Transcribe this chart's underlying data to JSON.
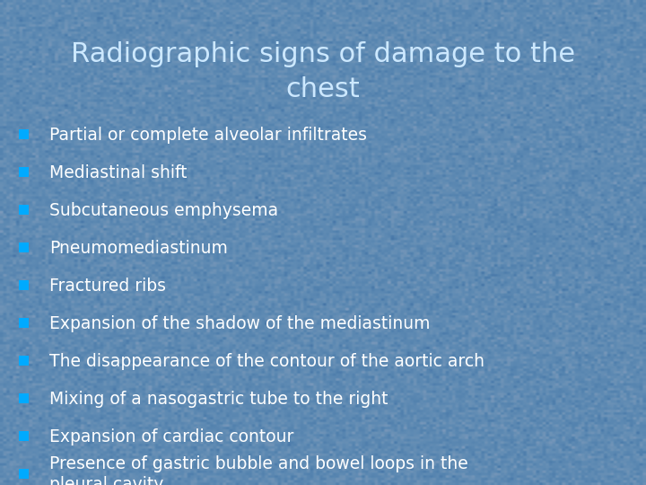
{
  "title": "Radiographic signs of damage to the\nchest",
  "title_color": "#cce8ff",
  "title_fontsize": 22,
  "background_color": "#5b7fa8",
  "bullet_color": "#00aaff",
  "text_color": "#ffffff",
  "bullet_fontsize": 13.5,
  "items": [
    "Partial or complete alveolar infiltrates",
    "Mediastinal shift",
    "Subcutaneous emphysema",
    "Pneumomediastinum",
    "Fractured ribs",
    "Expansion of the shadow of the mediastinum",
    "The disappearance of the contour of the aortic arch",
    "Mixing of a nasogastric tube to the right",
    "Expansion of cardiac contour",
    "Presence of gastric bubble and bowel loops in the\npleural cavity"
  ]
}
